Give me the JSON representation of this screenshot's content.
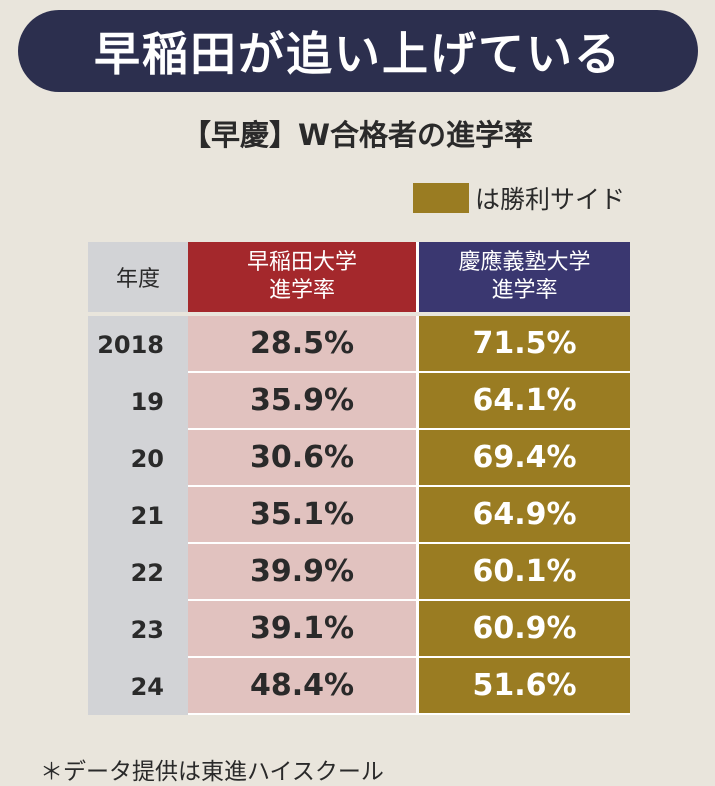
{
  "header": {
    "title": "早稲田が追い上げている",
    "subtitle": "【早慶】W合格者の進学率"
  },
  "legend": {
    "label": "は勝利サイド",
    "color": "#9a7c22"
  },
  "table": {
    "columns": [
      {
        "lines": [
          "年度"
        ],
        "color": "#d2d3d6"
      },
      {
        "lines": [
          "早稲田大学",
          "進学率"
        ],
        "color": "#a4282c"
      },
      {
        "lines": [
          "慶應義塾大学",
          "進学率"
        ],
        "color": "#3a3770"
      }
    ],
    "rows": [
      [
        "2018",
        "28.5%",
        "71.5%"
      ],
      [
        "19",
        "35.9%",
        "64.1%"
      ],
      [
        "20",
        "30.6%",
        "69.4%"
      ],
      [
        "21",
        "35.1%",
        "64.9%"
      ],
      [
        "22",
        "39.9%",
        "60.1%"
      ],
      [
        "23",
        "39.1%",
        "60.9%"
      ],
      [
        "24",
        "48.4%",
        "51.6%"
      ]
    ]
  },
  "footnote": "＊データ提供は東進ハイスクール"
}
